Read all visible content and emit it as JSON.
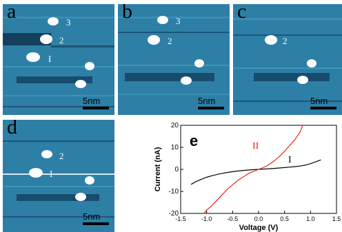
{
  "panels": [
    {
      "label": "a",
      "scale": "5nm",
      "markers": [
        {
          "text": "3"
        },
        {
          "text": "2"
        },
        {
          "text": "I"
        }
      ]
    },
    {
      "label": "b",
      "scale": "5nm",
      "markers": [
        {
          "text": "3"
        },
        {
          "text": "2"
        }
      ]
    },
    {
      "label": "c",
      "scale": "5nm",
      "markers": [
        {
          "text": "2"
        }
      ]
    },
    {
      "label": "d",
      "scale": "5nm",
      "markers": [
        {
          "text": "2"
        },
        {
          "text": "I"
        }
      ]
    }
  ],
  "chart_panel_label": "e",
  "colors": {
    "stm_bg": "#2e7fa6",
    "curve_I": "#000000",
    "curve_II": "#e8241c"
  },
  "chart_data": {
    "type": "line",
    "xlabel": "Voltage (V)",
    "ylabel": "Current (nA)",
    "xlim": [
      -1.5,
      1.5
    ],
    "ylim": [
      -20,
      20
    ],
    "xticks": [
      "-1.5",
      "-1.0",
      "-0.5",
      "0.0",
      "0.5",
      "1.0",
      "1.5"
    ],
    "yticks": [
      "-20",
      "-10",
      "0",
      "10",
      "20"
    ],
    "series": [
      {
        "name": "I",
        "color": "#000000",
        "x": [
          -1.3,
          -1.2,
          -1.1,
          -1.0,
          -0.9,
          -0.8,
          -0.7,
          -0.6,
          -0.5,
          -0.4,
          -0.3,
          -0.2,
          -0.1,
          0.0,
          0.1,
          0.2,
          0.3,
          0.4,
          0.5,
          0.6,
          0.7,
          0.8,
          0.9,
          1.0,
          1.1,
          1.2
        ],
        "y": [
          -6.8,
          -5.5,
          -4.5,
          -3.6,
          -2.9,
          -2.3,
          -1.8,
          -1.4,
          -1.05,
          -0.75,
          -0.5,
          -0.3,
          -0.12,
          0.0,
          0.12,
          0.28,
          0.45,
          0.62,
          0.8,
          1.0,
          1.25,
          1.5,
          1.9,
          2.6,
          3.4,
          4.3
        ]
      },
      {
        "name": "II",
        "color": "#e8241c",
        "x": [
          -1.05,
          -1.0,
          -0.9,
          -0.8,
          -0.7,
          -0.6,
          -0.5,
          -0.4,
          -0.3,
          -0.2,
          -0.1,
          0.0,
          0.1,
          0.2,
          0.3,
          0.4,
          0.5,
          0.6,
          0.7,
          0.8,
          0.85
        ],
        "y": [
          -20,
          -18.5,
          -16.5,
          -14.0,
          -11.5,
          -9.0,
          -7.0,
          -5.0,
          -3.5,
          -2.0,
          -0.9,
          0.0,
          0.9,
          2.2,
          3.8,
          5.8,
          8.2,
          10.8,
          13.5,
          17.0,
          20.0
        ]
      }
    ]
  }
}
